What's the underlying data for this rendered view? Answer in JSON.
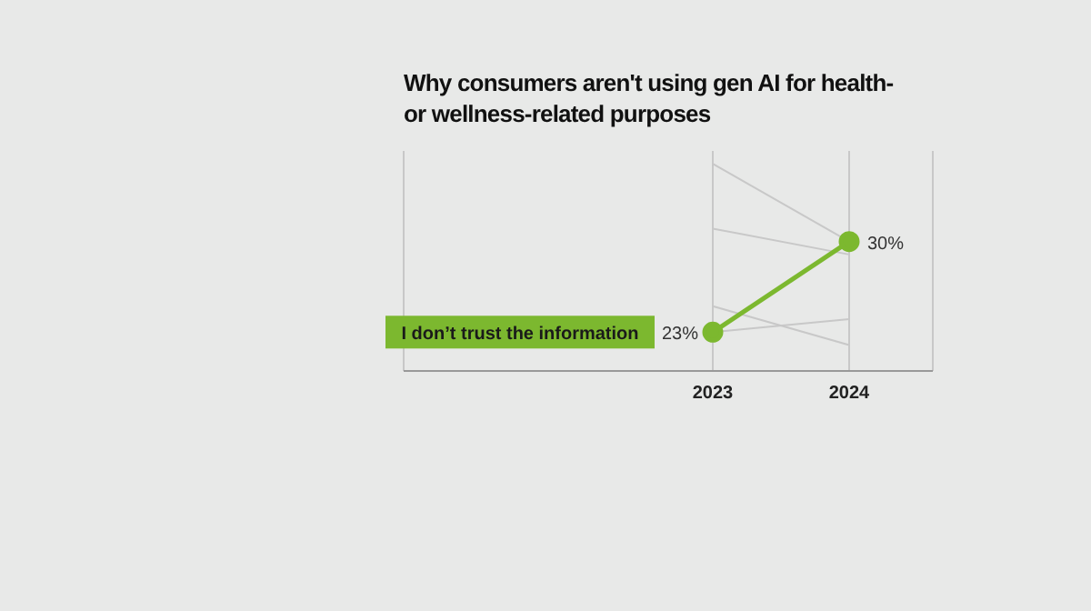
{
  "chart_data": {
    "type": "line",
    "title": "Why consumers aren't using gen AI for health- or wellness-related purposes",
    "categories": [
      "2023",
      "2024"
    ],
    "ylim": [
      20,
      37
    ],
    "tick_labels": "x",
    "grid": "x",
    "legend": false,
    "series": [
      {
        "color": "#c8c8c8",
        "values": [
          36,
          30
        ]
      },
      {
        "color": "#c8c8c8",
        "values": [
          31,
          29
        ]
      },
      {
        "color": "#c8c8c8",
        "values": [
          25,
          22
        ]
      },
      {
        "color": "#c8c8c8",
        "values": [
          23,
          24
        ]
      },
      {
        "name": "I don’t trust the information",
        "color": "#7cb82f",
        "values": [
          23,
          30
        ],
        "value_labels": [
          "23%",
          "30%"
        ],
        "marker": "circle"
      }
    ]
  }
}
